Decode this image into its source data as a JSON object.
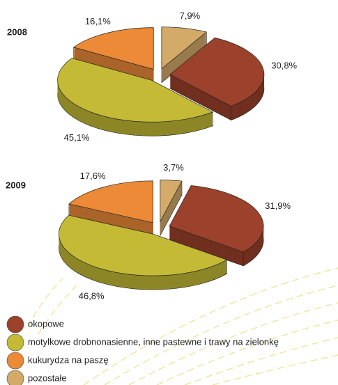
{
  "chart_data": {
    "type": "pie",
    "categories": [
      "okopowe",
      "motylkowe drobnonasienne, inne pastewne i trawy na zielonkę",
      "kukurydza na paszę",
      "pozostałe"
    ],
    "colors": [
      "#9c412b",
      "#c4ba36",
      "#ec8a37",
      "#d4aa69"
    ],
    "series": [
      {
        "name": "2008",
        "values": [
          30.8,
          45.1,
          16.1,
          7.9
        ],
        "value_labels": [
          "30,8%",
          "45,1%",
          "16,1%",
          "7,9%"
        ]
      },
      {
        "name": "2009",
        "values": [
          31.9,
          46.8,
          17.6,
          3.7
        ],
        "value_labels": [
          "31,9%",
          "46,8%",
          "17,6%",
          "3,7%"
        ]
      }
    ]
  }
}
